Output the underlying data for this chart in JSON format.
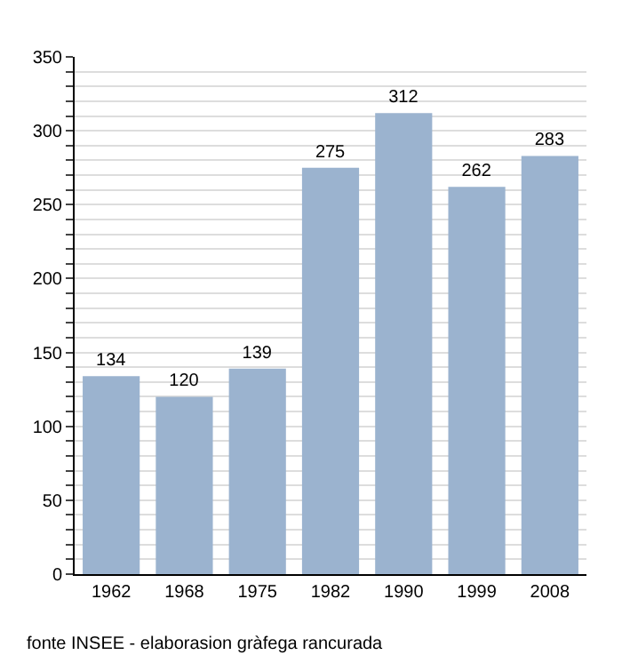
{
  "chart_data": {
    "type": "bar",
    "categories": [
      "1962",
      "1968",
      "1975",
      "1982",
      "1990",
      "1999",
      "2008"
    ],
    "values": [
      134,
      120,
      139,
      275,
      312,
      262,
      283
    ],
    "color": "#9bb3cf",
    "ylim": [
      0,
      350
    ],
    "yticks": [
      0,
      {
        "value": 10,
        "label": null
      },
      {
        "value": 20,
        "label": null
      },
      {
        "value": 30,
        "label": null
      },
      {
        "value": 40,
        "label": null
      },
      50,
      {
        "value": 60,
        "label": null
      },
      {
        "value": 70,
        "label": null
      },
      {
        "value": 80,
        "label": null
      },
      {
        "value": 90,
        "label": null
      },
      100,
      {
        "value": 110,
        "label": null
      },
      {
        "value": 120,
        "label": null
      },
      {
        "value": 130,
        "label": null
      },
      {
        "value": 140,
        "label": null
      },
      150,
      {
        "value": 160,
        "label": null
      },
      {
        "value": 170,
        "label": null
      },
      {
        "value": 180,
        "label": null
      },
      {
        "value": 190,
        "label": null
      },
      200,
      {
        "value": 210,
        "label": null
      },
      {
        "value": 220,
        "label": null
      },
      {
        "value": 230,
        "label": null
      },
      {
        "value": 240,
        "label": null
      },
      250,
      {
        "value": 260,
        "label": null
      },
      {
        "value": 270,
        "label": null
      },
      {
        "value": 280,
        "label": null
      },
      {
        "value": 290,
        "label": null
      },
      300,
      {
        "value": 310,
        "label": null
      },
      {
        "value": 320,
        "label": null
      },
      {
        "value": 330,
        "label": null
      },
      {
        "value": 340,
        "label": null
      },
      350
    ],
    "grid": "y",
    "data_labels": true,
    "annotations": [
      "fonte INSEE - elaborasion gràfega rancurada"
    ]
  }
}
